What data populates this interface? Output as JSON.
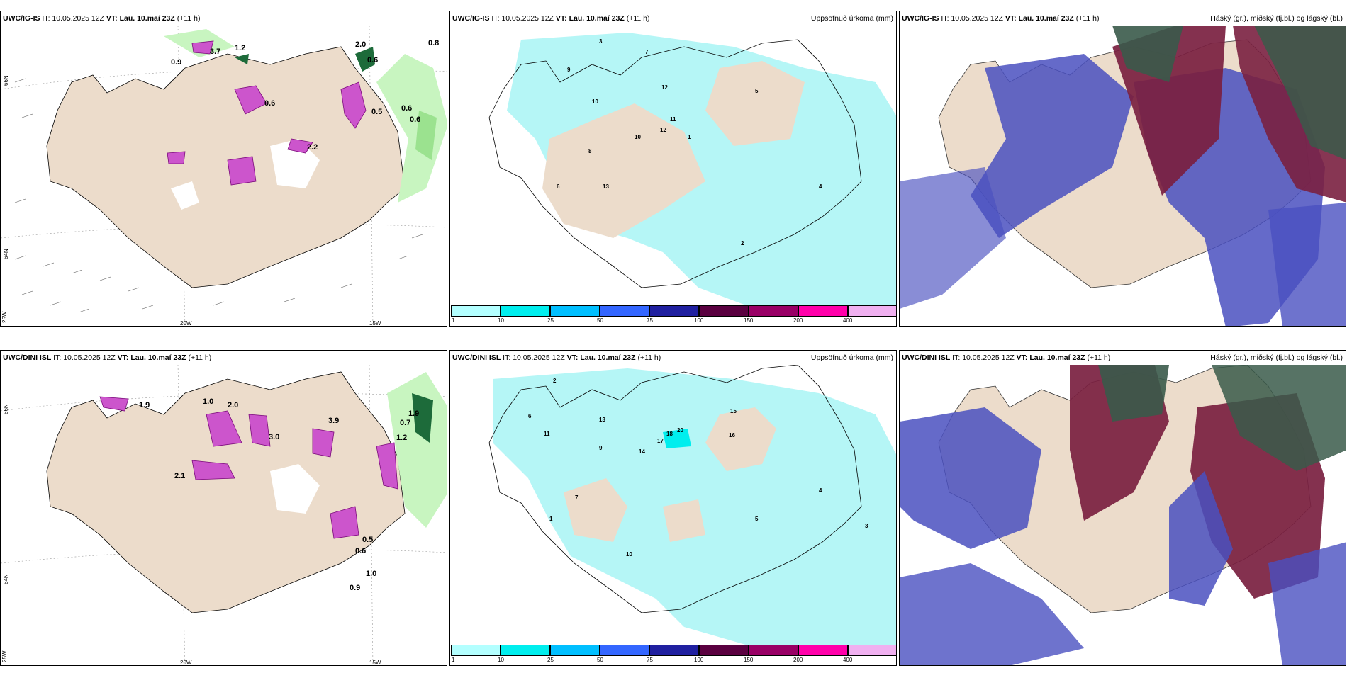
{
  "panels": [
    {
      "id": "p1",
      "model": "UWC/IG-IS",
      "it_label": "IT:",
      "it": "10.05.2025 12Z",
      "vt_label": "VT:",
      "vt": "Lau. 10.maí 23Z",
      "lead": "(+11 h)",
      "right": ""
    },
    {
      "id": "p2",
      "model": "UWC/IG-IS",
      "it_label": "IT:",
      "it": "10.05.2025 12Z",
      "vt_label": "VT:",
      "vt": "Lau. 10.maí 23Z",
      "lead": "(+11 h)",
      "right": "Uppsöfnuð úrkoma (mm)"
    },
    {
      "id": "p3",
      "model": "UWC/IG-IS",
      "it_label": "IT:",
      "it": "10.05.2025 12Z",
      "vt_label": "VT:",
      "vt": "Lau. 10.maí 23Z",
      "lead": "(+11 h)",
      "right": "Háský (gr.), miðský (fj.bl.) og lágský (bl.)"
    },
    {
      "id": "p4",
      "model": "UWC/DINI ISL",
      "it_label": "IT:",
      "it": "10.05.2025 12Z",
      "vt_label": "VT:",
      "vt": "Lau. 10.maí 23Z",
      "lead": "(+11 h)",
      "right": ""
    },
    {
      "id": "p5",
      "model": "UWC/DINI ISL",
      "it_label": "IT:",
      "it": "10.05.2025 12Z",
      "vt_label": "VT:",
      "vt": "Lau. 10.maí 23Z",
      "lead": "(+11 h)",
      "right": "Uppsöfnuð úrkoma (mm)"
    },
    {
      "id": "p6",
      "model": "UWC/DINI ISL",
      "it_label": "IT:",
      "it": "10.05.2025 12Z",
      "vt_label": "VT:",
      "vt": "Lau. 10.maí 23Z",
      "lead": "(+11 h)",
      "right": "Háský (gr.), miðský (fj.bl.) og lágský (bl.)"
    }
  ],
  "axis_labels": {
    "lat66": "66N",
    "lat64": "64N",
    "lon25": "25W",
    "lon20": "20W",
    "lon15": "15W"
  },
  "colorbar": {
    "labels": [
      "1",
      "10",
      "25",
      "50",
      "75",
      "100",
      "150",
      "200",
      "400"
    ],
    "colors": [
      "#b3ffff",
      "#00eeee",
      "#00bfff",
      "#3366ff",
      "#2020a0",
      "#5a0040",
      "#990066",
      "#ff00aa",
      "#f0b0f0"
    ]
  },
  "wind_labels_top": [
    "1.2",
    "3.7",
    "0.9",
    "2.0",
    "0.6",
    "0.6",
    "0.8",
    "0.6",
    "0.6",
    "0.5",
    "2.2"
  ],
  "wind_labels_bottom": [
    "1.0",
    "2.0",
    "1.9",
    "3.9",
    "2.1",
    "0.5",
    "0.6",
    "0.9",
    "1.0",
    "0.7",
    "1.2",
    "3.0",
    "1.9"
  ],
  "precip_labels_top": [
    "3",
    "9",
    "7",
    "10",
    "12",
    "11",
    "12",
    "10",
    "8",
    "5",
    "6",
    "4",
    "2",
    "1",
    "13"
  ],
  "precip_labels_bottom": [
    "2",
    "6",
    "11",
    "13",
    "18",
    "20",
    "17",
    "14",
    "16",
    "9",
    "7",
    "5",
    "4",
    "3",
    "1",
    "10",
    "15"
  ],
  "colors": {
    "land": "#ecdccb",
    "shade1": "#b5f6f6",
    "green_light": "#c8f5c0",
    "green_dark": "#1d6b3a",
    "magenta": "#cc55cc",
    "cloud_high": "#7a2040",
    "cloud_mid": "#3a5a4a",
    "cloud_low": "#4a50c0"
  }
}
